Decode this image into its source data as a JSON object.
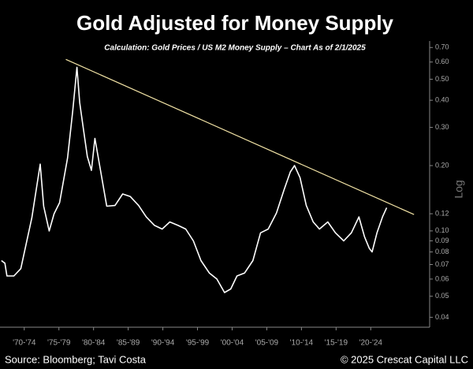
{
  "chart_data": {
    "type": "line",
    "title": "Gold Adjusted for Money Supply",
    "subtitle": "Calculation: Gold Prices / US M2 Money Supply – Chart As of 2/1/2025",
    "y_axis_label": "Log",
    "source": "Source: Bloomberg; Tavi Costa",
    "copyright": "© 2025 Crescat Capital LLC",
    "log_scale": true,
    "color": "#ffffff",
    "x": [
      1969.2,
      1969.7,
      1970,
      1971,
      1972,
      1973.6,
      1974.8,
      1975.3,
      1976.1,
      1976.8,
      1977.6,
      1978.75,
      1979.5,
      1980.1,
      1980.5,
      1981,
      1981.6,
      1982.2,
      1982.7,
      1983.5,
      1984.4,
      1985.6,
      1986.7,
      1987.8,
      1989,
      1990.1,
      1991.3,
      1992.4,
      1993.5,
      1994.7,
      1995.8,
      1996.9,
      1998,
      1999.2,
      2000.3,
      2001.4,
      2002.3,
      2003.2,
      2004.3,
      2005.5,
      2006.6,
      2007.7,
      2008.9,
      2010,
      2010.9,
      2011.5,
      2012.3,
      2013.2,
      2014.2,
      2015.1,
      2016.3,
      2017.4,
      2018.6,
      2019.7,
      2020.8,
      2021.6,
      2022.3,
      2022.7,
      2023.4,
      2024.2,
      2024.8
    ],
    "values": [
      0.073,
      0.071,
      0.062,
      0.062,
      0.067,
      0.115,
      0.203,
      0.13,
      0.1,
      0.12,
      0.135,
      0.217,
      0.358,
      0.567,
      0.39,
      0.3,
      0.22,
      0.19,
      0.267,
      0.19,
      0.13,
      0.131,
      0.148,
      0.144,
      0.131,
      0.116,
      0.106,
      0.102,
      0.11,
      0.106,
      0.102,
      0.09,
      0.073,
      0.064,
      0.06,
      0.052,
      0.054,
      0.062,
      0.064,
      0.073,
      0.098,
      0.102,
      0.121,
      0.155,
      0.187,
      0.2,
      0.176,
      0.131,
      0.11,
      0.102,
      0.11,
      0.098,
      0.09,
      0.098,
      0.116,
      0.094,
      0.083,
      0.08,
      0.098,
      0.116,
      0.128
    ],
    "trendline": {
      "color": "#f3e4a6",
      "x": [
        1978.5,
        2028.75
      ],
      "values": [
        0.617,
        0.119
      ]
    },
    "xlim": [
      1969,
      2031
    ],
    "ylim": [
      0.036,
      0.75
    ],
    "xticks": [
      {
        "value": 1972.5,
        "label": "'70-'74"
      },
      {
        "value": 1977.5,
        "label": "'75-'79"
      },
      {
        "value": 1982.5,
        "label": "'80-'84"
      },
      {
        "value": 1987.5,
        "label": "'85-'89"
      },
      {
        "value": 1992.5,
        "label": "'90-'94"
      },
      {
        "value": 1997.5,
        "label": "'95-'99"
      },
      {
        "value": 2002.5,
        "label": "'00-'04"
      },
      {
        "value": 2007.5,
        "label": "'05-'09"
      },
      {
        "value": 2012.5,
        "label": "'10-'14"
      },
      {
        "value": 2017.5,
        "label": "'15-'19"
      },
      {
        "value": 2022.5,
        "label": "'20-'24"
      }
    ],
    "yticks": [
      {
        "value": 0.7,
        "label": "0.70"
      },
      {
        "value": 0.6,
        "label": "0.60"
      },
      {
        "value": 0.5,
        "label": "0.50"
      },
      {
        "value": 0.4,
        "label": "0.40"
      },
      {
        "value": 0.3,
        "label": "0.30"
      },
      {
        "value": 0.2,
        "label": "0.20"
      },
      0.12,
      {
        "value": 0.1,
        "label": "0.10"
      },
      0.09,
      0.08,
      0.07,
      0.06,
      0.05,
      0.04
    ]
  }
}
